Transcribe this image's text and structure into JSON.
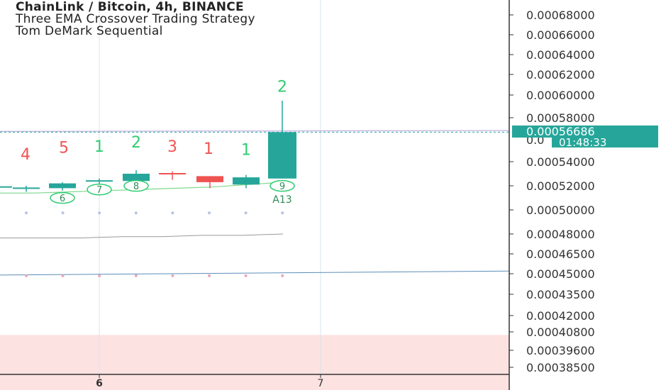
{
  "header": {
    "title": "ChainLink / Bitcoin, 4h, BINANCE",
    "indicators": [
      "Three EMA Crossover Trading Strategy",
      "Tom DeMark Sequential"
    ]
  },
  "colors": {
    "up": "#26a69a",
    "down": "#ef5350",
    "setup_up": "#2ecc71",
    "setup_down": "#ef5350",
    "grid": "#d6e4ee",
    "axis_text": "#333333",
    "price_tag": "#26a69a",
    "purple_line": "#b39ddb",
    "blue_line": "#5b8db8",
    "grey_line": "#999999",
    "zone_fill": "#fde2e2",
    "dot_blue": "#b8c4e6",
    "dot_pink": "#e8a8b8"
  },
  "chart_data": {
    "type": "candlestick",
    "y_axis": {
      "ticks": [
        "0.00068000",
        "0.00066000",
        "0.00064000",
        "0.00062000",
        "0.00060000",
        "0.00058000",
        "0.00054000",
        "0.00052000",
        "0.00050000",
        "0.00048000",
        "0.00046500",
        "0.00045000",
        "0.00043500",
        "0.00042000",
        "0.00040800",
        "0.00039600",
        "0.00038500"
      ],
      "tick_values": [
        0.00068,
        0.00066,
        0.00064,
        0.00062,
        0.0006,
        0.00058,
        0.00054,
        0.00052,
        0.0005,
        0.00048,
        0.000465,
        0.00045,
        0.000435,
        0.00042,
        0.000408,
        0.000396,
        0.000385
      ],
      "hidden_tick_partial": "0.0",
      "range": [
        0.000381,
        0.000695
      ]
    },
    "x_axis": {
      "labels": [
        "6",
        "7"
      ],
      "label_positions": [
        2.5,
        8.5
      ]
    },
    "last_price": {
      "label": "0.00056686",
      "value": 0.00056686
    },
    "countdown": {
      "label": "01:48:33"
    },
    "candles": [
      {
        "o": 0.000518,
        "h": 0.00052,
        "l": 0.000516,
        "c": 0.000519
      },
      {
        "o": 0.000518,
        "h": 0.00052,
        "l": 0.000515,
        "c": 0.000518
      },
      {
        "o": 0.000518,
        "h": 0.000523,
        "l": 0.000516,
        "c": 0.000522
      },
      {
        "o": 0.000523,
        "h": 0.000526,
        "l": 0.00052,
        "c": 0.000524
      },
      {
        "o": 0.000524,
        "h": 0.000533,
        "l": 0.000524,
        "c": 0.00053
      },
      {
        "o": 0.00053,
        "h": 0.000532,
        "l": 0.000525,
        "c": 0.000529
      },
      {
        "o": 0.000528,
        "h": 0.000528,
        "l": 0.000518,
        "c": 0.000523
      },
      {
        "o": 0.000521,
        "h": 0.000529,
        "l": 0.000518,
        "c": 0.000527
      },
      {
        "o": 0.00052,
        "h": 0.000519,
        "l": 0.000519,
        "c": 0.000518
      },
      {
        "o": 0.000526,
        "h": 0.000595,
        "l": 0.000526,
        "c": 0.0005669
      }
    ],
    "setup_counts": [
      {
        "i": 0,
        "label": "4",
        "dir": "down",
        "price": 0.000542
      },
      {
        "i": 1,
        "label": "5",
        "dir": "down",
        "price": 0.000548
      },
      {
        "i": 2,
        "label": "1",
        "dir": "up",
        "price": 0.000549
      },
      {
        "i": 3,
        "label": "2",
        "dir": "up",
        "price": 0.000553
      },
      {
        "i": 4,
        "label": "3",
        "dir": "down",
        "price": 0.000549
      },
      {
        "i": 5,
        "label": "1",
        "dir": "down",
        "price": 0.000547
      },
      {
        "i": 6,
        "label": "1",
        "dir": "up",
        "price": 0.000546
      },
      {
        "i": 8.5,
        "label": "2",
        "dir": "up",
        "price": 0.000603
      }
    ],
    "countdown_circles": [
      {
        "i": 1,
        "label": "6",
        "price": 0.000507
      },
      {
        "i": 2,
        "label": "7",
        "price": 0.000514
      },
      {
        "i": 3,
        "label": "8",
        "price": 0.000517
      },
      {
        "i": 6,
        "label": "9",
        "price": 0.000517
      }
    ],
    "annotation": {
      "i": 6,
      "label": "A13",
      "price": 0.000503
    },
    "ema_line": [
      0.000514,
      0.000514,
      0.000515,
      0.000516,
      0.000517,
      0.000518,
      0.000519,
      0.000521,
      0.000523
    ],
    "grey_line": [
      0.000477,
      0.000477,
      0.000477,
      0.000478,
      0.000478,
      0.000479,
      0.000479,
      0.00048
    ],
    "blue_line_ends": [
      0.000449,
      0.000452
    ],
    "purple_line_ends": [
      0.0005669,
      0.000567
    ],
    "dots_upper": 0.0004975,
    "dots_lower": 0.0004485,
    "zone": {
      "from": 0.000381,
      "to": 0.000406
    }
  }
}
